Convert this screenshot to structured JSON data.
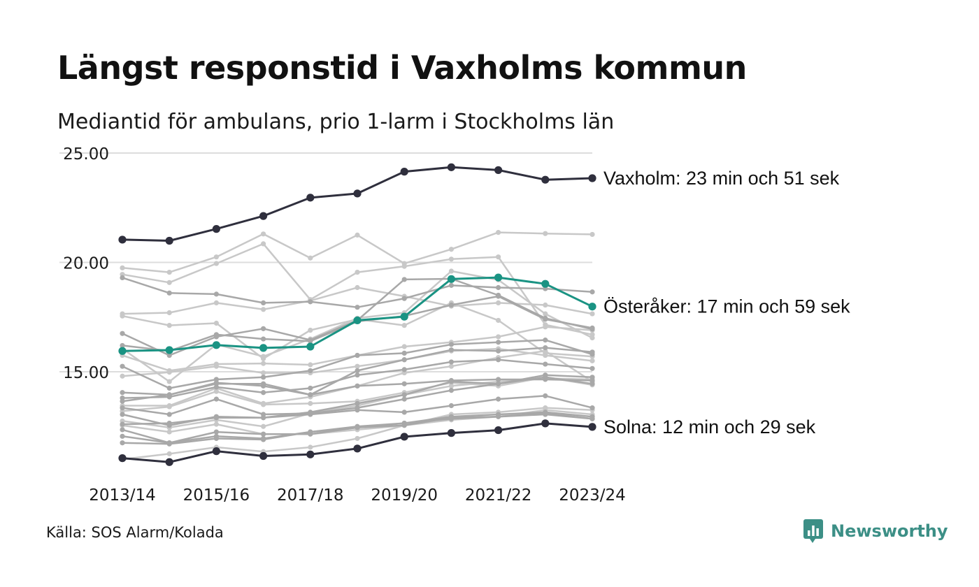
{
  "header": {
    "title": "Längst responstid i Vaxholms kommun",
    "subtitle": "Mediantid för ambulans, prio 1-larm i Stockholms län"
  },
  "footer": {
    "source": "Källa: SOS Alarm/Kolada",
    "brand": "Newsworthy",
    "brand_icon": "newsworthy-logo-icon"
  },
  "colors": {
    "dark": "#2f2f3d",
    "highlight": "#1a9383",
    "light_gray": "#c8c8c8",
    "mid_gray": "#a8a8a8",
    "grid": "#dddddd",
    "brand": "#3c8f86"
  },
  "chart_data": {
    "type": "line",
    "x": [
      "2013/14",
      "2014/15",
      "2015/16",
      "2016/17",
      "2017/18",
      "2018/19",
      "2019/20",
      "2020/21",
      "2021/22",
      "2022/23",
      "2023/24"
    ],
    "x_tick_labels": [
      "2013/14",
      "2015/16",
      "2017/18",
      "2019/20",
      "2021/22",
      "2023/24"
    ],
    "ylim": [
      10.5,
      25.0
    ],
    "y_ticks": [
      15,
      20,
      25
    ],
    "y_tick_labels": [
      "15.00",
      "20.00",
      "25.00"
    ],
    "grid": "horizontal",
    "highlighted": [
      {
        "label": "Vaxholm: 23 min och 51 sek",
        "style": "dark",
        "values": [
          21.04,
          20.99,
          21.53,
          22.12,
          22.96,
          23.15,
          24.15,
          24.35,
          24.22,
          23.78,
          23.85
        ]
      },
      {
        "label": "Österåker: 17 min och 59 sek",
        "style": "highlight",
        "values": [
          15.95,
          15.99,
          16.22,
          16.09,
          16.15,
          17.35,
          17.52,
          19.24,
          19.31,
          19.02,
          17.98
        ]
      },
      {
        "label": "Solna: 12 min och 29 sek",
        "style": "dark",
        "values": [
          11.05,
          10.87,
          11.37,
          11.15,
          11.22,
          11.49,
          12.03,
          12.2,
          12.33,
          12.64,
          12.48
        ]
      }
    ],
    "background_series": [
      {
        "style": "light",
        "values": [
          19.75,
          19.55,
          20.25,
          21.3,
          20.2,
          21.25,
          19.95,
          20.6,
          21.37,
          21.32,
          21.28
        ]
      },
      {
        "style": "light",
        "values": [
          19.45,
          19.08,
          19.95,
          20.85,
          18.3,
          19.55,
          19.82,
          20.15,
          20.25,
          17.15,
          16.7
        ]
      },
      {
        "style": "mid",
        "values": [
          19.3,
          18.6,
          18.55,
          18.15,
          18.2,
          17.95,
          18.35,
          18.95,
          18.85,
          18.8,
          18.65
        ]
      },
      {
        "style": "light",
        "values": [
          17.65,
          17.7,
          18.15,
          17.85,
          18.25,
          18.85,
          18.45,
          18.0,
          18.15,
          18.05,
          17.65
        ]
      },
      {
        "style": "light",
        "values": [
          17.55,
          17.12,
          17.22,
          15.6,
          16.9,
          17.4,
          17.12,
          18.15,
          17.35,
          15.85,
          15.7
        ]
      },
      {
        "style": "mid",
        "values": [
          16.75,
          15.75,
          16.6,
          16.97,
          16.45,
          17.35,
          19.22,
          19.25,
          18.5,
          17.45,
          16.95
        ]
      },
      {
        "style": "mid",
        "values": [
          16.2,
          15.95,
          16.7,
          16.5,
          16.4,
          17.3,
          17.55,
          18.05,
          18.45,
          17.4,
          17.0
        ]
      },
      {
        "style": "light",
        "values": [
          16.05,
          14.55,
          16.25,
          15.7,
          16.5,
          17.45,
          17.7,
          19.6,
          19.2,
          17.65,
          16.55
        ]
      },
      {
        "style": "light",
        "values": [
          15.75,
          15.05,
          15.35,
          15.38,
          15.32,
          15.75,
          16.15,
          16.35,
          16.6,
          17.05,
          16.9
        ]
      },
      {
        "style": "mid",
        "values": [
          15.25,
          14.25,
          14.65,
          14.75,
          15.05,
          15.75,
          15.85,
          16.25,
          16.35,
          16.45,
          15.8
        ]
      },
      {
        "style": "light",
        "values": [
          14.8,
          14.98,
          15.25,
          14.95,
          14.95,
          15.25,
          15.55,
          15.95,
          16.05,
          15.75,
          15.5
        ]
      },
      {
        "style": "mid",
        "values": [
          14.05,
          13.95,
          14.5,
          14.35,
          13.95,
          15.05,
          15.55,
          16.0,
          15.95,
          16.1,
          15.9
        ]
      },
      {
        "style": "mid",
        "values": [
          13.8,
          13.85,
          14.3,
          14.05,
          14.25,
          14.85,
          15.1,
          15.45,
          15.55,
          15.35,
          15.15
        ]
      },
      {
        "style": "mid",
        "values": [
          13.65,
          13.95,
          14.45,
          14.45,
          13.95,
          14.35,
          14.45,
          14.6,
          14.65,
          14.65,
          14.6
        ]
      },
      {
        "style": "light",
        "values": [
          13.45,
          13.45,
          14.25,
          13.55,
          13.85,
          14.35,
          14.95,
          15.25,
          15.65,
          15.95,
          14.55
        ]
      },
      {
        "style": "mid",
        "values": [
          13.35,
          13.05,
          13.75,
          13.05,
          13.1,
          13.35,
          13.75,
          14.15,
          14.45,
          14.85,
          14.75
        ]
      },
      {
        "style": "light",
        "values": [
          13.2,
          13.4,
          14.1,
          13.5,
          13.55,
          13.65,
          14.05,
          14.5,
          14.35,
          14.75,
          14.4
        ]
      },
      {
        "style": "mid",
        "values": [
          13.05,
          12.55,
          12.95,
          12.9,
          13.15,
          13.55,
          13.95,
          14.55,
          14.45,
          14.75,
          14.45
        ]
      },
      {
        "style": "light",
        "values": [
          12.75,
          12.45,
          12.8,
          12.5,
          13.1,
          13.45,
          13.95,
          14.35,
          14.55,
          14.7,
          14.65
        ]
      },
      {
        "style": "mid",
        "values": [
          12.6,
          12.65,
          12.9,
          12.9,
          13.05,
          13.25,
          13.15,
          13.45,
          13.75,
          13.9,
          13.35
        ]
      },
      {
        "style": "light",
        "values": [
          12.55,
          12.25,
          12.6,
          12.15,
          12.15,
          12.35,
          12.55,
          13.05,
          13.15,
          13.35,
          13.25
        ]
      },
      {
        "style": "mid",
        "values": [
          12.35,
          11.75,
          12.25,
          12.15,
          12.15,
          12.45,
          12.65,
          12.95,
          13.05,
          13.15,
          12.95
        ]
      },
      {
        "style": "mid",
        "values": [
          12.05,
          11.75,
          12.05,
          11.95,
          12.25,
          12.5,
          12.65,
          12.85,
          12.95,
          13.1,
          12.85
        ]
      },
      {
        "style": "mid",
        "values": [
          11.75,
          11.7,
          11.95,
          11.9,
          12.25,
          12.45,
          12.55,
          12.9,
          12.95,
          13.05,
          12.85
        ]
      },
      {
        "style": "light",
        "values": [
          11.0,
          11.25,
          11.55,
          11.35,
          11.55,
          11.95,
          12.55,
          12.8,
          12.95,
          13.25,
          13.05
        ]
      }
    ]
  }
}
